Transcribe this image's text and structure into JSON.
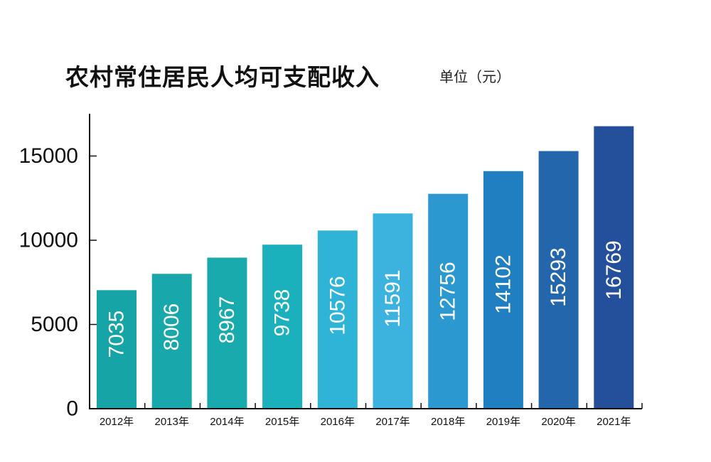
{
  "title": "农村常住居民人均可支配收入",
  "unit": "单位（元）",
  "chart_data": {
    "type": "bar",
    "title": "农村常住居民人均可支配收入",
    "ylabel": "",
    "xlabel": "",
    "ylim": [
      0,
      17000
    ],
    "yticks": [
      0,
      5000,
      10000,
      15000
    ],
    "grid": false,
    "categories": [
      "2012年",
      "2013年",
      "2014年",
      "2015年",
      "2016年",
      "2017年",
      "2018年",
      "2019年",
      "2020年",
      "2021年"
    ],
    "values": [
      7035,
      8006,
      8967,
      9738,
      10576,
      11591,
      12756,
      14102,
      15293,
      16769
    ],
    "colors": [
      "#17a4a7",
      "#18a7aa",
      "#19aaad",
      "#1ab1bd",
      "#2fb4d7",
      "#3cb3de",
      "#2b99cf",
      "#1f7fc0",
      "#2466ab",
      "#244f9a"
    ]
  }
}
